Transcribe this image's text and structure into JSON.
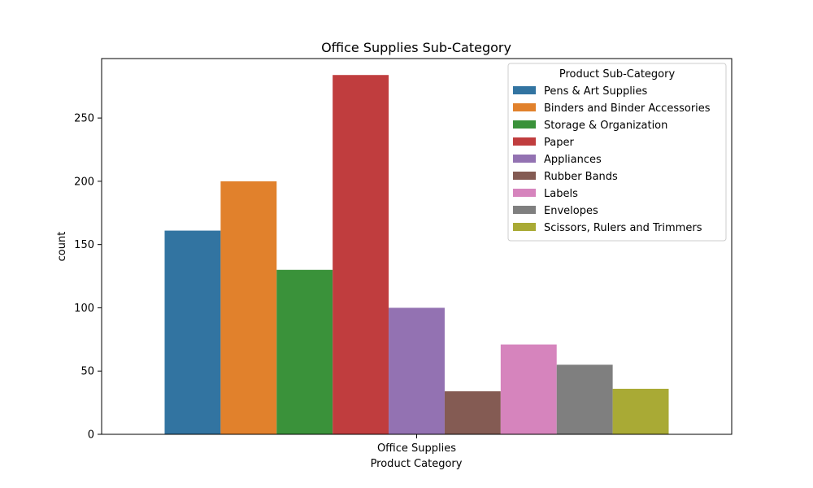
{
  "chart_data": {
    "type": "bar",
    "title": "Office Supplies Sub-Category",
    "xlabel": "Product Category",
    "ylabel": "count",
    "categories": [
      "Office Supplies"
    ],
    "ylim": [
      0,
      297
    ],
    "yticks": [
      0,
      50,
      100,
      150,
      200,
      250
    ],
    "grid": false,
    "legend": {
      "title": "Product Sub-Category",
      "placement": "top-right"
    },
    "series": [
      {
        "name": "Pens & Art Supplies",
        "values": [
          161
        ],
        "color": "#3274a1"
      },
      {
        "name": "Binders and Binder Accessories",
        "values": [
          200
        ],
        "color": "#e1812c"
      },
      {
        "name": "Storage & Organization",
        "values": [
          130
        ],
        "color": "#3a923a"
      },
      {
        "name": "Paper",
        "values": [
          284
        ],
        "color": "#c03d3e"
      },
      {
        "name": "Appliances",
        "values": [
          100
        ],
        "color": "#9372b2"
      },
      {
        "name": "Rubber Bands",
        "values": [
          34
        ],
        "color": "#845b53"
      },
      {
        "name": "Labels",
        "values": [
          71
        ],
        "color": "#d684bd"
      },
      {
        "name": "Envelopes",
        "values": [
          55
        ],
        "color": "#7f7f7f"
      },
      {
        "name": "Scissors, Rulers and Trimmers",
        "values": [
          36
        ],
        "color": "#a9aa35"
      }
    ]
  }
}
